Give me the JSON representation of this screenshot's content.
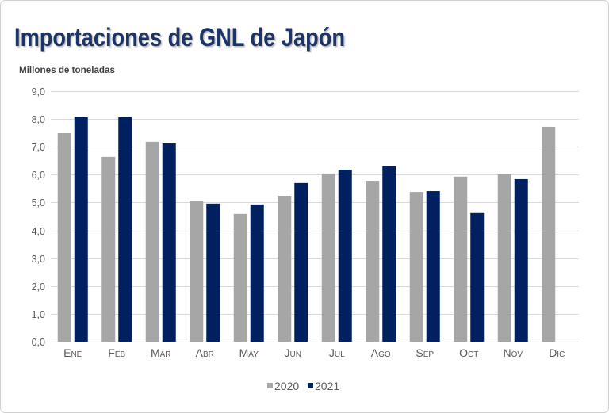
{
  "chart_data": {
    "type": "bar",
    "title": "Importaciones de GNL de Japón",
    "ylabel": "Millones de toneladas",
    "categories": [
      "Ene",
      "Feb",
      "Mar",
      "Abr",
      "May",
      "Jun",
      "Jul",
      "Ago",
      "Sep",
      "Oct",
      "Nov",
      "Dic"
    ],
    "series": [
      {
        "name": "2020",
        "color": "#a6a6a6",
        "values": [
          7.49,
          6.64,
          7.18,
          5.04,
          4.59,
          5.24,
          6.04,
          5.78,
          5.38,
          5.93,
          6.01,
          7.72
        ]
      },
      {
        "name": "2021",
        "color": "#002060",
        "values": [
          8.06,
          8.06,
          7.12,
          4.96,
          4.93,
          5.7,
          6.18,
          6.3,
          5.41,
          4.62,
          5.84,
          null
        ]
      }
    ],
    "ylim": [
      0,
      9
    ],
    "yticks": [
      "0,0",
      "1,0",
      "2,0",
      "3,0",
      "4,0",
      "5,0",
      "6,0",
      "7,0",
      "8,0",
      "9,0"
    ],
    "grid": true,
    "legend": "bottom-center"
  }
}
